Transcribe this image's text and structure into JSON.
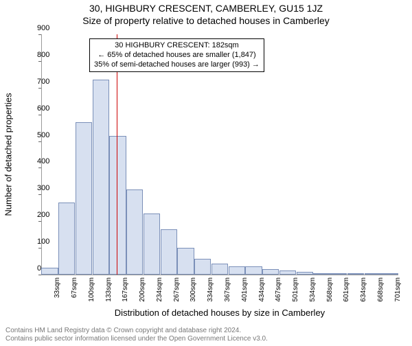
{
  "titles": {
    "line1": "30, HIGHBURY CRESCENT, CAMBERLEY, GU15 1JZ",
    "line2": "Size of property relative to detached houses in Camberley"
  },
  "chart": {
    "type": "histogram",
    "ylabel": "Number of detached properties",
    "xlabel": "Distribution of detached houses by size in Camberley",
    "ylim": [
      0,
      900
    ],
    "ytick_step": 100,
    "x_categories": [
      "33sqm",
      "67sqm",
      "100sqm",
      "133sqm",
      "167sqm",
      "200sqm",
      "234sqm",
      "267sqm",
      "300sqm",
      "334sqm",
      "367sqm",
      "401sqm",
      "434sqm",
      "467sqm",
      "501sqm",
      "534sqm",
      "568sqm",
      "601sqm",
      "634sqm",
      "668sqm",
      "701sqm"
    ],
    "values": [
      25,
      270,
      570,
      730,
      520,
      320,
      230,
      170,
      100,
      60,
      40,
      30,
      30,
      20,
      15,
      10,
      5,
      5,
      5,
      3,
      2
    ],
    "bar_fill": "#d7e0f0",
    "bar_stroke": "#7a8fb8",
    "background_color": "#ffffff",
    "axis_color": "#666666",
    "tick_fontsize": 11,
    "label_fontsize": 13,
    "title_fontsize": 14,
    "reference_line": {
      "position_sqm": 182,
      "color": "#cc0000",
      "width": 1
    },
    "annotation": {
      "lines": [
        "30 HIGHBURY CRESCENT: 182sqm",
        "← 65% of detached houses are smaller (1,847)",
        "35% of semi-detached houses are larger (993) →"
      ],
      "border_color": "#000000",
      "bg_color": "#ffffff",
      "fontsize": 11
    }
  },
  "footer": {
    "line1": "Contains HM Land Registry data © Crown copyright and database right 2024.",
    "line2": "Contains public sector information licensed under the Open Government Licence v3.0."
  }
}
